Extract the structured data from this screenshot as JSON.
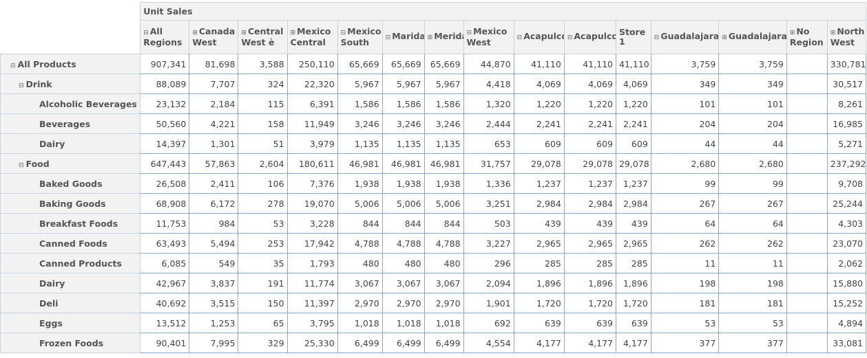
{
  "measure_label": "Unit Sales",
  "columns": [
    {
      "toggle": "⊟",
      "label": "All Regions"
    },
    {
      "toggle": "⊞",
      "label": "Canada West"
    },
    {
      "toggle": "⊞",
      "label": "Central West è"
    },
    {
      "toggle": "⊞",
      "label": "Mexico Central"
    },
    {
      "toggle": "⊟",
      "label": "Mexico South"
    },
    {
      "toggle": "⊟",
      "label": "Marida"
    },
    {
      "toggle": "⊞",
      "label": "Merida"
    },
    {
      "toggle": "⊟",
      "label": "Mexico West"
    },
    {
      "toggle": "⊟",
      "label": "Acapulco"
    },
    {
      "toggle": "⊟",
      "label": "Acapulco"
    },
    {
      "toggle": "",
      "label": "Store 1"
    },
    {
      "toggle": "⊟",
      "label": "Guadalajara"
    },
    {
      "toggle": "⊞",
      "label": "Guadalajara"
    },
    {
      "toggle": "⊞",
      "label": "No Region"
    },
    {
      "toggle": "⊞",
      "label": "North West"
    }
  ],
  "rows": [
    {
      "level": 0,
      "toggle": "⊟",
      "label": "All Products",
      "values": [
        "907,341",
        "81,698",
        "3,588",
        "250,110",
        "65,669",
        "65,669",
        "65,669",
        "44,870",
        "41,110",
        "41,110",
        "41,110",
        "3,759",
        "3,759",
        "",
        "330,781"
      ]
    },
    {
      "level": 1,
      "toggle": "⊟",
      "label": "Drink",
      "values": [
        "88,089",
        "7,707",
        "324",
        "22,320",
        "5,967",
        "5,967",
        "5,967",
        "4,418",
        "4,069",
        "4,069",
        "4,069",
        "349",
        "349",
        "",
        "30,517"
      ]
    },
    {
      "level": 2,
      "toggle": "",
      "label": "Alcoholic Beverages",
      "values": [
        "23,132",
        "2,184",
        "115",
        "6,391",
        "1,586",
        "1,586",
        "1,586",
        "1,320",
        "1,220",
        "1,220",
        "1,220",
        "101",
        "101",
        "",
        "8,261"
      ]
    },
    {
      "level": 2,
      "toggle": "",
      "label": "Beverages",
      "values": [
        "50,560",
        "4,221",
        "158",
        "11,949",
        "3,246",
        "3,246",
        "3,246",
        "2,444",
        "2,241",
        "2,241",
        "2,241",
        "204",
        "204",
        "",
        "16,985"
      ]
    },
    {
      "level": 2,
      "toggle": "",
      "label": "Dairy",
      "values": [
        "14,397",
        "1,301",
        "51",
        "3,979",
        "1,135",
        "1,135",
        "1,135",
        "653",
        "609",
        "609",
        "609",
        "44",
        "44",
        "",
        "5,271"
      ]
    },
    {
      "level": 1,
      "toggle": "⊟",
      "label": "Food",
      "values": [
        "647,443",
        "57,863",
        "2,604",
        "180,611",
        "46,981",
        "46,981",
        "46,981",
        "31,757",
        "29,078",
        "29,078",
        "29,078",
        "2,680",
        "2,680",
        "",
        "237,292"
      ]
    },
    {
      "level": 2,
      "toggle": "",
      "label": "Baked Goods",
      "values": [
        "26,508",
        "2,411",
        "106",
        "7,376",
        "1,938",
        "1,938",
        "1,938",
        "1,336",
        "1,237",
        "1,237",
        "1,237",
        "99",
        "99",
        "",
        "9,708"
      ]
    },
    {
      "level": 2,
      "toggle": "",
      "label": "Baking Goods",
      "values": [
        "68,908",
        "6,172",
        "278",
        "19,070",
        "5,006",
        "5,006",
        "5,006",
        "3,251",
        "2,984",
        "2,984",
        "2,984",
        "267",
        "267",
        "",
        "25,244"
      ]
    },
    {
      "level": 2,
      "toggle": "",
      "label": "Breakfast Foods",
      "values": [
        "11,753",
        "984",
        "53",
        "3,228",
        "844",
        "844",
        "844",
        "503",
        "439",
        "439",
        "439",
        "64",
        "64",
        "",
        "4,303"
      ]
    },
    {
      "level": 2,
      "toggle": "",
      "label": "Canned Foods",
      "values": [
        "63,493",
        "5,494",
        "253",
        "17,942",
        "4,788",
        "4,788",
        "4,788",
        "3,227",
        "2,965",
        "2,965",
        "2,965",
        "262",
        "262",
        "",
        "23,070"
      ]
    },
    {
      "level": 2,
      "toggle": "",
      "label": "Canned Products",
      "values": [
        "6,085",
        "549",
        "35",
        "1,793",
        "480",
        "480",
        "480",
        "296",
        "285",
        "285",
        "285",
        "11",
        "11",
        "",
        "2,062"
      ]
    },
    {
      "level": 2,
      "toggle": "",
      "label": "Dairy",
      "values": [
        "42,967",
        "3,837",
        "191",
        "11,774",
        "3,067",
        "3,067",
        "3,067",
        "2,094",
        "1,896",
        "1,896",
        "1,896",
        "198",
        "198",
        "",
        "15,880"
      ]
    },
    {
      "level": 2,
      "toggle": "",
      "label": "Deli",
      "values": [
        "40,692",
        "3,515",
        "150",
        "11,397",
        "2,970",
        "2,970",
        "2,970",
        "1,901",
        "1,720",
        "1,720",
        "1,720",
        "181",
        "181",
        "",
        "15,252"
      ]
    },
    {
      "level": 2,
      "toggle": "",
      "label": "Eggs",
      "values": [
        "13,512",
        "1,253",
        "65",
        "3,795",
        "1,018",
        "1,018",
        "1,018",
        "692",
        "639",
        "639",
        "639",
        "53",
        "53",
        "",
        "4,894"
      ]
    },
    {
      "level": 2,
      "toggle": "",
      "label": "Frozen Foods",
      "values": [
        "90,401",
        "7,995",
        "329",
        "25,330",
        "6,499",
        "6,499",
        "6,499",
        "4,554",
        "4,177",
        "4,177",
        "4,177",
        "377",
        "377",
        "",
        "33,081"
      ]
    }
  ]
}
